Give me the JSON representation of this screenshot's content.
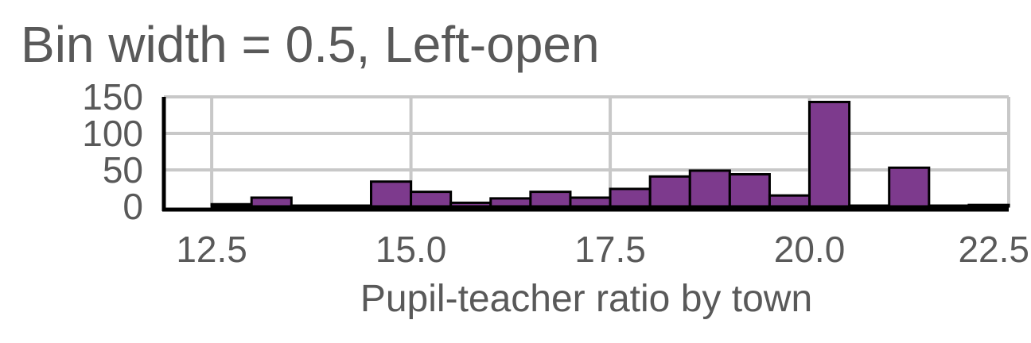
{
  "chart_data": {
    "type": "bar",
    "title": "Bin width = 0.5, Left-open",
    "xlabel": "Pupil-teacher ratio by town",
    "ylabel": "",
    "xlim": [
      11.9,
      22.5
    ],
    "ylim": [
      0,
      150
    ],
    "x_ticks": [
      "12.5",
      "15.0",
      "17.5",
      "20.0",
      "22.5"
    ],
    "x_tick_values": [
      12.5,
      15.0,
      17.5,
      20.0,
      22.5
    ],
    "y_ticks": [
      "0",
      "50",
      "100",
      "150"
    ],
    "y_tick_values": [
      0,
      50,
      100,
      150
    ],
    "bins": [
      {
        "x0": 12.5,
        "x1": 13.0,
        "count": 3
      },
      {
        "x0": 13.0,
        "x1": 13.5,
        "count": 12
      },
      {
        "x0": 13.5,
        "x1": 14.0,
        "count": 1
      },
      {
        "x0": 14.0,
        "x1": 14.5,
        "count": 1
      },
      {
        "x0": 14.5,
        "x1": 15.0,
        "count": 34
      },
      {
        "x0": 15.0,
        "x1": 15.5,
        "count": 20
      },
      {
        "x0": 15.5,
        "x1": 16.0,
        "count": 5
      },
      {
        "x0": 16.0,
        "x1": 16.5,
        "count": 11
      },
      {
        "x0": 16.5,
        "x1": 17.0,
        "count": 20
      },
      {
        "x0": 17.0,
        "x1": 17.5,
        "count": 12
      },
      {
        "x0": 17.5,
        "x1": 18.0,
        "count": 24
      },
      {
        "x0": 18.0,
        "x1": 18.5,
        "count": 41
      },
      {
        "x0": 18.5,
        "x1": 19.0,
        "count": 49
      },
      {
        "x0": 19.0,
        "x1": 19.5,
        "count": 44
      },
      {
        "x0": 19.5,
        "x1": 20.0,
        "count": 15
      },
      {
        "x0": 20.0,
        "x1": 20.5,
        "count": 143
      },
      {
        "x0": 20.5,
        "x1": 21.0,
        "count": 0
      },
      {
        "x0": 21.0,
        "x1": 21.5,
        "count": 53
      },
      {
        "x0": 21.5,
        "x1": 22.0,
        "count": 0
      },
      {
        "x0": 22.0,
        "x1": 22.5,
        "count": 2
      }
    ],
    "bar_color": "#7d3a8d",
    "grid": true,
    "legend": "none"
  }
}
